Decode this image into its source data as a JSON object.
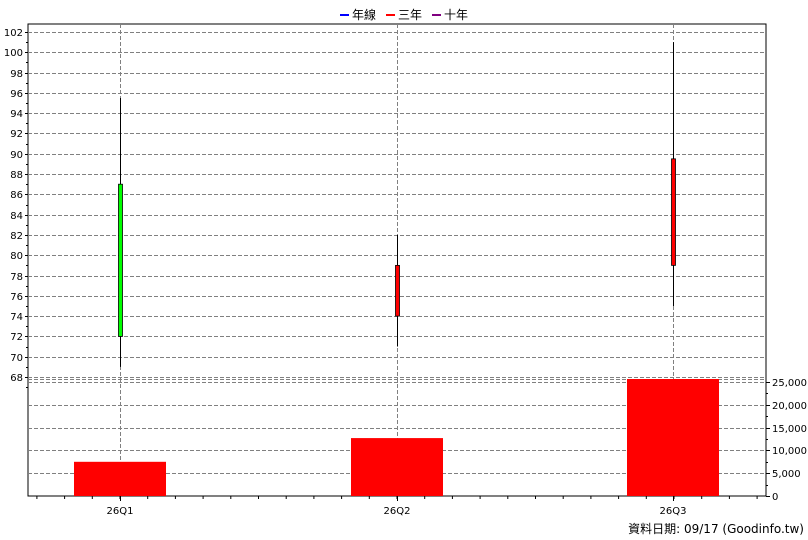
{
  "legend": [
    {
      "label": "年線",
      "color": "#0000ff"
    },
    {
      "label": "三年",
      "color": "#ff0000"
    },
    {
      "label": "十年",
      "color": "#800080"
    }
  ],
  "footer": "資料日期: 09/17  (Goodinfo.tw)",
  "colors": {
    "up_candle": "#00ff00",
    "down_candle": "#ff0000",
    "volume_bar": "#ff0000",
    "grid": "#808080",
    "axis": "#000000"
  },
  "chart_data": [
    {
      "type": "candlestick",
      "categories": [
        "26Q1",
        "26Q2",
        "26Q3"
      ],
      "series": [
        {
          "open": 72,
          "close": 87,
          "high": 95.5,
          "low": 69,
          "direction": "up"
        },
        {
          "open": 79,
          "close": 74,
          "high": 82,
          "low": 71,
          "direction": "down"
        },
        {
          "open": 89.5,
          "close": 79,
          "high": 101,
          "low": 75,
          "direction": "down"
        }
      ],
      "ylim": [
        66,
        103
      ],
      "yticks": [
        68,
        70,
        72,
        74,
        76,
        78,
        80,
        82,
        84,
        86,
        88,
        90,
        92,
        94,
        96,
        98,
        100,
        102
      ],
      "y_axis_side": "left",
      "grid": true
    },
    {
      "type": "bar",
      "categories": [
        "26Q1",
        "26Q2",
        "26Q3"
      ],
      "values": [
        7500,
        12700,
        25800
      ],
      "ylim": [
        0,
        25500
      ],
      "yticks": [
        0,
        5000,
        10000,
        15000,
        20000,
        25000
      ],
      "ytick_labels": [
        "0",
        "5,000",
        "10,000",
        "15,000",
        "20,000",
        "25,000"
      ],
      "y_axis_side": "right",
      "grid": true
    }
  ]
}
